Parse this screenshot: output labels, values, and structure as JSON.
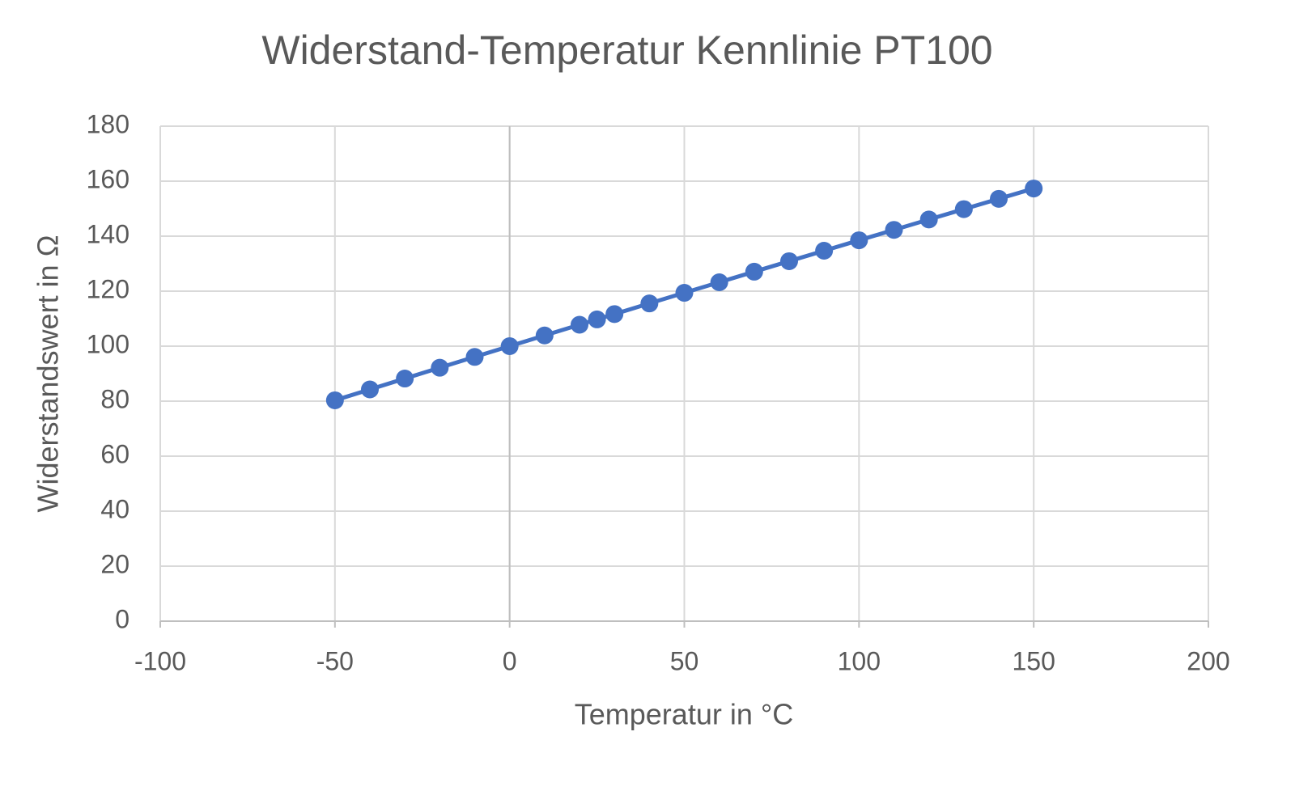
{
  "chart_data": {
    "type": "scatter-line",
    "title": "Widerstand-Temperatur Kennlinie PT100",
    "x_label": "Temperatur in °C",
    "y_label": "Widerstandswert in Ω",
    "x": [
      -50,
      -40,
      -30,
      -20,
      -10,
      0,
      10,
      20,
      25,
      30,
      40,
      50,
      60,
      70,
      80,
      90,
      100,
      110,
      120,
      130,
      140,
      150
    ],
    "values": [
      80.31,
      84.27,
      88.22,
      92.16,
      96.09,
      100,
      103.9,
      107.79,
      109.73,
      111.67,
      115.54,
      119.4,
      123.24,
      127.08,
      130.9,
      134.71,
      138.51,
      142.29,
      146.07,
      149.83,
      153.58,
      157.33
    ],
    "color": "#4472c4",
    "xlim": [
      -100,
      200
    ],
    "xticks": [
      -100,
      -50,
      0,
      50,
      100,
      150,
      200
    ],
    "ylim": [
      0,
      180
    ],
    "yticks": [
      0,
      20,
      40,
      60,
      80,
      100,
      120,
      140,
      160,
      180
    ],
    "grid": true
  }
}
